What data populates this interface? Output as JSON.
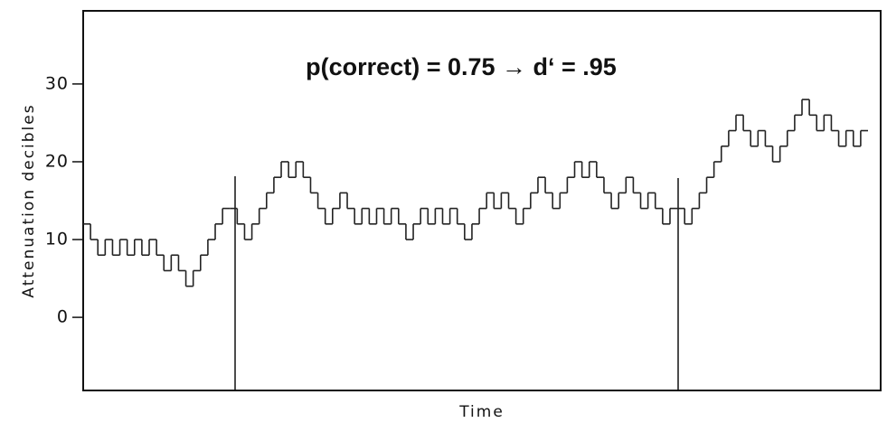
{
  "chart_data": {
    "type": "line",
    "drawstyle": "steps",
    "annotation": "p(correct) = 0.75 → d‘ = .95",
    "y_label": "Attenuation decibles",
    "x_label": "Time",
    "ylim": [
      -9.4,
      39.4
    ],
    "yticks": [
      0,
      10,
      20,
      30
    ],
    "color": "#222",
    "values": [
      12,
      10,
      8,
      10,
      8,
      10,
      8,
      10,
      8,
      10,
      8,
      6,
      8,
      6,
      4,
      6,
      8,
      10,
      12,
      14,
      14,
      12,
      10,
      12,
      14,
      16,
      18,
      20,
      18,
      20,
      18,
      16,
      14,
      12,
      14,
      16,
      14,
      12,
      14,
      12,
      14,
      12,
      14,
      12,
      10,
      12,
      14,
      12,
      14,
      12,
      14,
      12,
      10,
      12,
      14,
      16,
      14,
      16,
      14,
      12,
      14,
      16,
      18,
      16,
      14,
      16,
      18,
      20,
      18,
      20,
      18,
      16,
      14,
      16,
      18,
      16,
      14,
      16,
      14,
      12,
      14,
      14,
      12,
      14,
      16,
      18,
      20,
      22,
      24,
      26,
      24,
      22,
      24,
      22,
      20,
      22,
      24,
      26,
      28,
      26,
      24,
      26,
      24,
      22,
      24,
      22,
      24
    ]
  }
}
